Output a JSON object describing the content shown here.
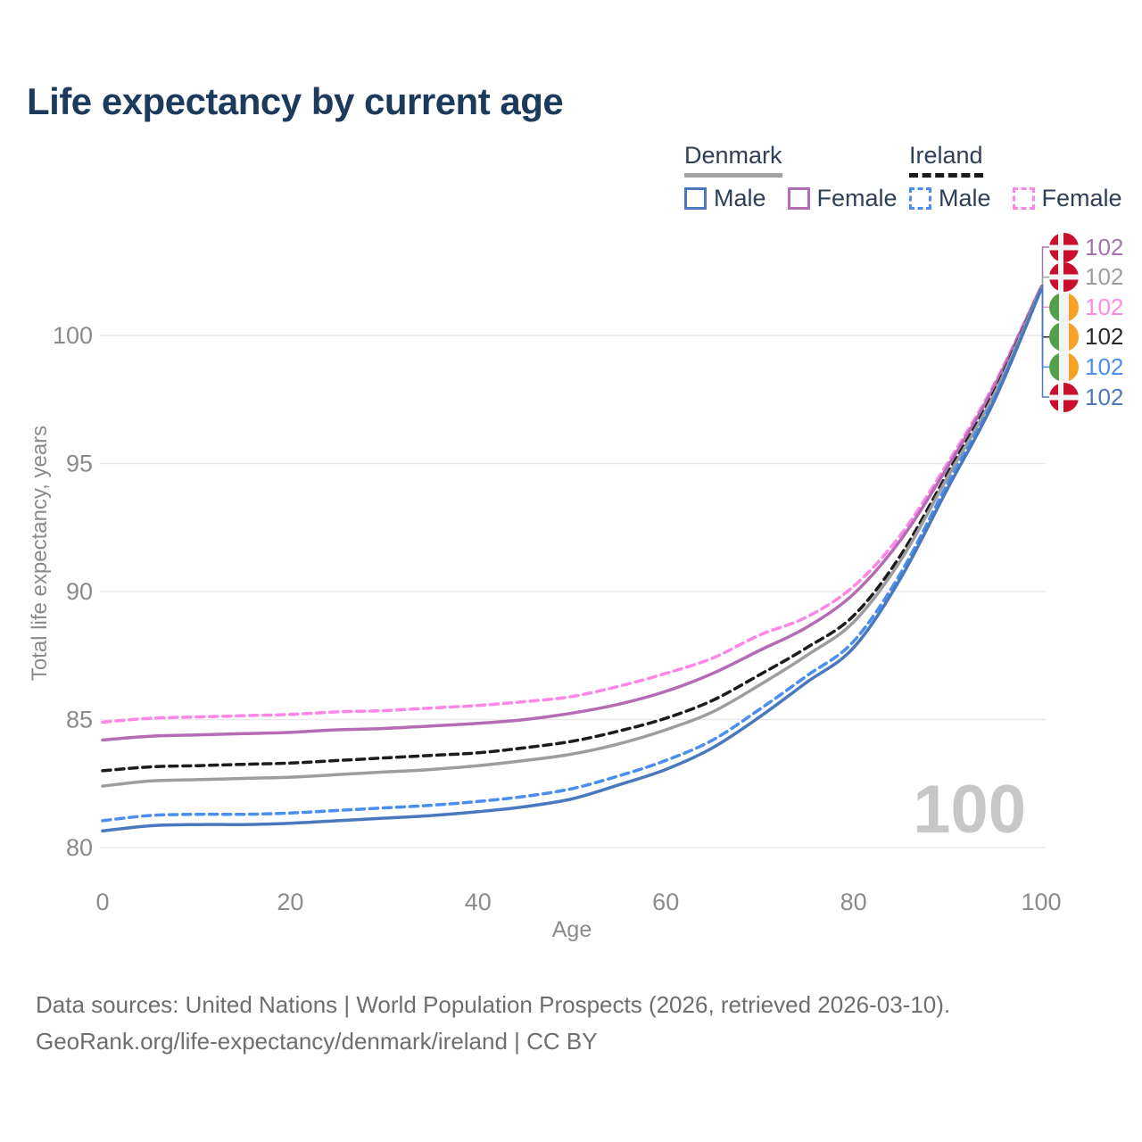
{
  "title": "Life expectancy by current age",
  "legend": {
    "groups": [
      {
        "name": "Denmark",
        "underline_style": "solid",
        "underline_color": "#a3a3a3",
        "items": [
          {
            "label": "Male",
            "color": "#4a78bc",
            "dashed": false
          },
          {
            "label": "Female",
            "color": "#b46cb4",
            "dashed": false
          }
        ]
      },
      {
        "name": "Ireland",
        "underline_style": "dashed",
        "underline_color": "#1a1a1a",
        "items": [
          {
            "label": "Male",
            "color": "#4a8ef2",
            "dashed": true
          },
          {
            "label": "Female",
            "color": "#ff85e6",
            "dashed": true
          }
        ]
      }
    ]
  },
  "watermark": "100",
  "end_labels": [
    {
      "flag": "denmark",
      "value": "102",
      "color": "#a872b2"
    },
    {
      "flag": "denmark",
      "value": "102",
      "color": "#9e9e9e"
    },
    {
      "flag": "ireland",
      "value": "102",
      "color": "#ff8ae6"
    },
    {
      "flag": "ireland",
      "value": "102",
      "color": "#2a2a2a"
    },
    {
      "flag": "ireland",
      "value": "102",
      "color": "#4a8ef2"
    },
    {
      "flag": "denmark",
      "value": "102",
      "color": "#4b79bb"
    }
  ],
  "footer": {
    "line1": "Data sources: United Nations | World Population Prospects (2026, retrieved 2026-03-10).",
    "line2": "GeoRank.org/life-expectancy/denmark/ireland | CC BY"
  },
  "chart_data": {
    "type": "line",
    "title": "Life expectancy by current age",
    "xlabel": "Age",
    "ylabel": "Total life expectancy, years",
    "x_ticks": [
      0,
      20,
      40,
      60,
      80,
      100
    ],
    "y_ticks": [
      80,
      85,
      90,
      95,
      100
    ],
    "xlim": [
      0,
      100
    ],
    "ylim": [
      79.3,
      102.5
    ],
    "grid": "horizontal",
    "legend_position": "top-right",
    "x": [
      0,
      5,
      10,
      15,
      20,
      25,
      30,
      35,
      40,
      45,
      50,
      55,
      60,
      65,
      70,
      75,
      80,
      85,
      90,
      95,
      100
    ],
    "series": [
      {
        "name": "Ireland Female",
        "color": "#ff85e6",
        "dashed": true,
        "values": [
          84.9,
          85.05,
          85.1,
          85.15,
          85.2,
          85.3,
          85.35,
          85.45,
          85.55,
          85.7,
          85.9,
          86.3,
          86.8,
          87.4,
          88.3,
          89.0,
          90.2,
          92.2,
          95.0,
          98.1,
          101.9
        ]
      },
      {
        "name": "Denmark Female",
        "color": "#b46cb4",
        "dashed": false,
        "values": [
          84.2,
          84.35,
          84.4,
          84.45,
          84.5,
          84.6,
          84.65,
          84.75,
          84.85,
          85.0,
          85.25,
          85.6,
          86.1,
          86.8,
          87.7,
          88.6,
          89.9,
          92.0,
          94.85,
          98.0,
          101.9
        ]
      },
      {
        "name": "Ireland Total",
        "color": "#1c1c1c",
        "dashed": true,
        "values": [
          83.0,
          83.15,
          83.2,
          83.25,
          83.3,
          83.4,
          83.5,
          83.6,
          83.7,
          83.9,
          84.15,
          84.55,
          85.05,
          85.75,
          86.75,
          87.8,
          89.05,
          91.4,
          94.6,
          97.8,
          101.85
        ]
      },
      {
        "name": "Denmark Total",
        "color": "#9d9d9d",
        "dashed": false,
        "values": [
          82.4,
          82.6,
          82.65,
          82.7,
          82.75,
          82.85,
          82.95,
          83.05,
          83.2,
          83.4,
          83.65,
          84.05,
          84.6,
          85.3,
          86.35,
          87.5,
          88.8,
          91.2,
          94.45,
          97.7,
          101.85
        ]
      },
      {
        "name": "Ireland Male",
        "color": "#4a8ef2",
        "dashed": true,
        "values": [
          81.05,
          81.25,
          81.3,
          81.3,
          81.35,
          81.45,
          81.55,
          81.65,
          81.8,
          82.0,
          82.3,
          82.8,
          83.4,
          84.2,
          85.4,
          86.7,
          88.05,
          90.7,
          94.2,
          97.55,
          101.8
        ]
      },
      {
        "name": "Denmark Male",
        "color": "#4a78bc",
        "dashed": false,
        "values": [
          80.65,
          80.85,
          80.9,
          80.9,
          80.95,
          81.05,
          81.15,
          81.25,
          81.4,
          81.6,
          81.9,
          82.45,
          83.05,
          83.9,
          85.1,
          86.45,
          87.8,
          90.5,
          94.0,
          97.45,
          101.8
        ]
      }
    ]
  }
}
